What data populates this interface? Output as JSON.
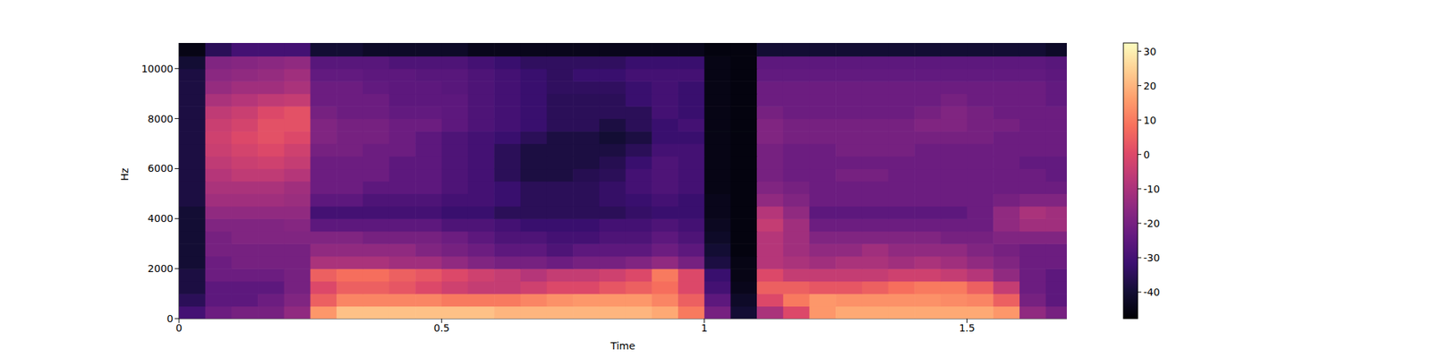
{
  "chart_data": {
    "type": "heatmap",
    "x_label": "Time",
    "y_label": "Hz",
    "xlim": [
      0,
      1.69
    ],
    "xticks": [
      0,
      0.5,
      1,
      1.5
    ],
    "ylim": [
      0,
      11025
    ],
    "yticks": [
      0,
      2000,
      4000,
      6000,
      8000,
      10000
    ],
    "time_edges": [
      0,
      0.05,
      0.1,
      0.15,
      0.2,
      0.25,
      0.3,
      0.35,
      0.4,
      0.45,
      0.5,
      0.55,
      0.6,
      0.65,
      0.7,
      0.75,
      0.8,
      0.85,
      0.9,
      0.95,
      1.0,
      1.05,
      1.1,
      1.15,
      1.2,
      1.25,
      1.3,
      1.35,
      1.4,
      1.45,
      1.5,
      1.55,
      1.6,
      1.65,
      1.69
    ],
    "freq_edges": [
      0,
      500,
      1000,
      1500,
      2000,
      2500,
      3000,
      3500,
      4000,
      4500,
      5000,
      5500,
      6000,
      6500,
      7000,
      7500,
      8000,
      8500,
      9000,
      9500,
      10000,
      10500,
      11025
    ],
    "cells": [
      [
        -30,
        -22,
        -20,
        -20,
        -15,
        15,
        22,
        22,
        22,
        22,
        22,
        22,
        20,
        20,
        20,
        20,
        20,
        20,
        18,
        10,
        -20,
        -40,
        -10,
        0,
        15,
        18,
        18,
        18,
        18,
        18,
        18,
        15,
        -15,
        -20
      ],
      [
        -35,
        -25,
        -25,
        -22,
        -18,
        5,
        12,
        12,
        12,
        12,
        10,
        10,
        10,
        12,
        14,
        15,
        15,
        15,
        12,
        5,
        -25,
        -42,
        0,
        10,
        15,
        14,
        14,
        14,
        14,
        13,
        12,
        5,
        -20,
        -25
      ],
      [
        -38,
        -25,
        -25,
        -25,
        -20,
        0,
        5,
        5,
        3,
        0,
        -3,
        -5,
        -5,
        -3,
        0,
        0,
        3,
        5,
        8,
        0,
        -30,
        -44,
        5,
        5,
        3,
        3,
        5,
        8,
        10,
        10,
        5,
        -5,
        -22,
        -25
      ],
      [
        -38,
        -22,
        -22,
        -22,
        -20,
        5,
        8,
        8,
        5,
        3,
        0,
        -3,
        -5,
        -8,
        -5,
        -5,
        -3,
        0,
        10,
        0,
        -32,
        -45,
        0,
        -5,
        -5,
        -5,
        -5,
        -3,
        -3,
        -5,
        -8,
        -15,
        -22,
        -25
      ],
      [
        -40,
        -22,
        -20,
        -20,
        -20,
        -10,
        -10,
        -10,
        -12,
        -12,
        -15,
        -18,
        -20,
        -20,
        -22,
        -20,
        -20,
        -18,
        -15,
        -20,
        -38,
        -45,
        -8,
        -10,
        -12,
        -10,
        -10,
        -12,
        -10,
        -12,
        -15,
        -18,
        -22,
        -22
      ],
      [
        -40,
        -20,
        -20,
        -20,
        -20,
        -15,
        -15,
        -15,
        -15,
        -18,
        -20,
        -22,
        -25,
        -25,
        -28,
        -25,
        -25,
        -25,
        -22,
        -25,
        -40,
        -46,
        -8,
        -12,
        -15,
        -15,
        -12,
        -15,
        -15,
        -15,
        -18,
        -20,
        -22,
        -22
      ],
      [
        -40,
        -20,
        -18,
        -18,
        -18,
        -18,
        -18,
        -20,
        -20,
        -20,
        -22,
        -25,
        -28,
        -28,
        -30,
        -30,
        -28,
        -28,
        -25,
        -28,
        -42,
        -46,
        -8,
        -12,
        -18,
        -18,
        -18,
        -18,
        -18,
        -20,
        -20,
        -18,
        -18,
        -18
      ],
      [
        -40,
        -18,
        -18,
        -18,
        -17,
        -25,
        -25,
        -25,
        -25,
        -25,
        -28,
        -28,
        -30,
        -32,
        -32,
        -32,
        -30,
        -30,
        -28,
        -30,
        -43,
        -46,
        -5,
        -12,
        -22,
        -22,
        -22,
        -22,
        -22,
        -22,
        -22,
        -15,
        -12,
        -12
      ],
      [
        -40,
        -15,
        -15,
        -15,
        -15,
        -30,
        -30,
        -30,
        -30,
        -30,
        -32,
        -32,
        -35,
        -35,
        -35,
        -35,
        -35,
        -33,
        -32,
        -32,
        -44,
        -46,
        -8,
        -15,
        -25,
        -25,
        -25,
        -25,
        -25,
        -25,
        -22,
        -15,
        -10,
        -12
      ],
      [
        -38,
        -12,
        -12,
        -12,
        -13,
        -25,
        -25,
        -28,
        -28,
        -28,
        -30,
        -30,
        -32,
        -35,
        -35,
        -35,
        -33,
        -32,
        -30,
        -32,
        -44,
        -46,
        -15,
        -18,
        -22,
        -22,
        -22,
        -22,
        -22,
        -22,
        -22,
        -20,
        -18,
        -18
      ],
      [
        -38,
        -10,
        -10,
        -10,
        -12,
        -22,
        -22,
        -25,
        -25,
        -25,
        -28,
        -30,
        -32,
        -35,
        -35,
        -35,
        -33,
        -30,
        -28,
        -30,
        -45,
        -46,
        -18,
        -20,
        -22,
        -22,
        -22,
        -22,
        -22,
        -22,
        -22,
        -22,
        -22,
        -22
      ],
      [
        -38,
        -8,
        -6,
        -6,
        -8,
        -22,
        -22,
        -22,
        -25,
        -25,
        -28,
        -30,
        -35,
        -38,
        -38,
        -36,
        -35,
        -30,
        -28,
        -30,
        -45,
        -46,
        -20,
        -22,
        -22,
        -20,
        -20,
        -22,
        -22,
        -22,
        -22,
        -22,
        -22,
        -24
      ],
      [
        -38,
        -6,
        -4,
        -3,
        -5,
        -22,
        -22,
        -22,
        -25,
        -25,
        -28,
        -30,
        -35,
        -38,
        -38,
        -38,
        -36,
        -32,
        -28,
        -30,
        -45,
        -46,
        -20,
        -22,
        -22,
        -22,
        -22,
        -22,
        -22,
        -22,
        -22,
        -22,
        -24,
        -24
      ],
      [
        -38,
        -4,
        -2,
        0,
        -3,
        -20,
        -20,
        -22,
        -22,
        -25,
        -28,
        -30,
        -35,
        -38,
        -38,
        -38,
        -38,
        -35,
        -30,
        -30,
        -45,
        -46,
        -20,
        -22,
        -22,
        -20,
        -20,
        -20,
        -22,
        -22,
        -22,
        -22,
        -22,
        -22
      ],
      [
        -38,
        -3,
        0,
        2,
        0,
        -18,
        -20,
        -20,
        -22,
        -25,
        -28,
        -30,
        -32,
        -35,
        -38,
        -38,
        -40,
        -38,
        -32,
        -32,
        -45,
        -46,
        -18,
        -20,
        -20,
        -20,
        -20,
        -20,
        -20,
        -20,
        -20,
        -22,
        -22,
        -22
      ],
      [
        -38,
        -4,
        -2,
        2,
        2,
        -18,
        -20,
        -20,
        -22,
        -22,
        -25,
        -28,
        -30,
        -32,
        -35,
        -35,
        -38,
        -35,
        -32,
        -30,
        -45,
        -46,
        -18,
        -20,
        -20,
        -20,
        -20,
        -20,
        -18,
        -18,
        -20,
        -20,
        -22,
        -22
      ],
      [
        -38,
        -6,
        -4,
        0,
        2,
        -20,
        -22,
        -22,
        -24,
        -24,
        -25,
        -28,
        -30,
        -32,
        -35,
        -35,
        -35,
        -35,
        -30,
        -32,
        -45,
        -46,
        -20,
        -22,
        -22,
        -22,
        -22,
        -22,
        -20,
        -18,
        -20,
        -22,
        -22,
        -22
      ],
      [
        -38,
        -10,
        -8,
        -6,
        -5,
        -22,
        -22,
        -22,
        -25,
        -25,
        -25,
        -28,
        -30,
        -32,
        -35,
        -35,
        -35,
        -32,
        -30,
        -32,
        -45,
        -46,
        -22,
        -22,
        -22,
        -22,
        -22,
        -22,
        -22,
        -20,
        -22,
        -22,
        -22,
        -24
      ],
      [
        -38,
        -14,
        -12,
        -12,
        -10,
        -22,
        -22,
        -24,
        -25,
        -25,
        -26,
        -28,
        -30,
        -32,
        -34,
        -34,
        -34,
        -32,
        -30,
        -32,
        -45,
        -46,
        -22,
        -22,
        -22,
        -22,
        -22,
        -22,
        -22,
        -22,
        -22,
        -22,
        -22,
        -24
      ],
      [
        -38,
        -16,
        -15,
        -14,
        -12,
        -24,
        -24,
        -25,
        -25,
        -26,
        -26,
        -28,
        -30,
        -32,
        -34,
        -32,
        -32,
        -30,
        -30,
        -30,
        -45,
        -46,
        -24,
        -24,
        -24,
        -24,
        -24,
        -24,
        -24,
        -24,
        -24,
        -24,
        -24,
        -25
      ],
      [
        -40,
        -18,
        -17,
        -16,
        -15,
        -26,
        -26,
        -26,
        -28,
        -28,
        -28,
        -30,
        -32,
        -34,
        -34,
        -34,
        -34,
        -32,
        -32,
        -32,
        -45,
        -46,
        -25,
        -25,
        -25,
        -25,
        -25,
        -25,
        -25,
        -25,
        -25,
        -25,
        -25,
        -26
      ],
      [
        -45,
        -35,
        -30,
        -30,
        -30,
        -40,
        -40,
        -42,
        -42,
        -42,
        -42,
        -44,
        -44,
        -44,
        -44,
        -44,
        -44,
        -44,
        -44,
        -44,
        -46,
        -46,
        -40,
        -40,
        -40,
        -40,
        -40,
        -40,
        -40,
        -40,
        -40,
        -40,
        -40,
        -42
      ]
    ],
    "colorbar": {
      "range": [
        -47.7,
        32.4
      ],
      "ticks": [
        -40,
        -30,
        -20,
        -10,
        0,
        10,
        20,
        30
      ]
    }
  }
}
